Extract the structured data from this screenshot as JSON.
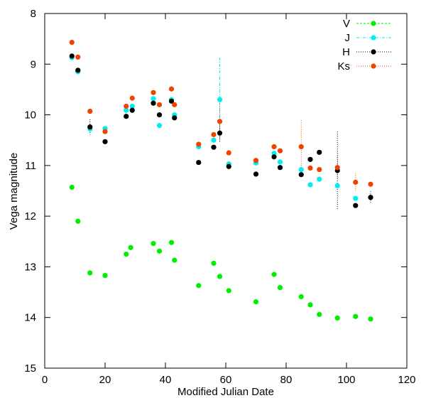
{
  "chart_data": {
    "type": "scatter",
    "title": "",
    "xlabel": "Modified Julian Date",
    "ylabel": "Vega magnitude",
    "xlim": [
      0,
      120
    ],
    "ylim": [
      8,
      15
    ],
    "y_inverted": true,
    "x_ticks": [
      0,
      20,
      40,
      60,
      80,
      100,
      120
    ],
    "y_ticks": [
      8,
      9,
      10,
      11,
      12,
      13,
      14,
      15
    ],
    "grid": false,
    "legend_position": "top-right",
    "series": [
      {
        "name": "V",
        "color": "#00ee00",
        "line_style": "dashed",
        "points": [
          {
            "x": 9,
            "y": 11.43
          },
          {
            "x": 11,
            "y": 12.1
          },
          {
            "x": 15,
            "y": 13.12
          },
          {
            "x": 20,
            "y": 13.17
          },
          {
            "x": 27,
            "y": 12.75
          },
          {
            "x": 28.5,
            "y": 12.62
          },
          {
            "x": 36,
            "y": 12.54
          },
          {
            "x": 38,
            "y": 12.69
          },
          {
            "x": 42,
            "y": 12.52
          },
          {
            "x": 43,
            "y": 12.87
          },
          {
            "x": 51,
            "y": 13.37
          },
          {
            "x": 56,
            "y": 12.93
          },
          {
            "x": 58,
            "y": 13.19
          },
          {
            "x": 61,
            "y": 13.47
          },
          {
            "x": 70,
            "y": 13.69
          },
          {
            "x": 76,
            "y": 13.15
          },
          {
            "x": 78,
            "y": 13.41
          },
          {
            "x": 85,
            "y": 13.59
          },
          {
            "x": 88,
            "y": 13.75
          },
          {
            "x": 91,
            "y": 13.94
          },
          {
            "x": 97,
            "y": 14.01
          },
          {
            "x": 103,
            "y": 13.98
          },
          {
            "x": 108,
            "y": 14.03
          }
        ]
      },
      {
        "name": "J",
        "color": "#00eeee",
        "line_style": "dash-dot",
        "points": [
          {
            "x": 9,
            "y": 8.87
          },
          {
            "x": 11,
            "y": 9.15
          },
          {
            "x": 15,
            "y": 10.28
          },
          {
            "x": 20,
            "y": 10.27
          },
          {
            "x": 27,
            "y": 9.91
          },
          {
            "x": 29,
            "y": 9.83
          },
          {
            "x": 36,
            "y": 9.68
          },
          {
            "x": 38,
            "y": 10.21
          },
          {
            "x": 42,
            "y": 9.7
          },
          {
            "x": 43,
            "y": 10.0
          },
          {
            "x": 51,
            "y": 10.63
          },
          {
            "x": 56,
            "y": 10.5
          },
          {
            "x": 58,
            "y": 9.7,
            "err": 0.83
          },
          {
            "x": 61,
            "y": 10.97
          },
          {
            "x": 70,
            "y": 10.95
          },
          {
            "x": 76,
            "y": 10.76
          },
          {
            "x": 78,
            "y": 10.93
          },
          {
            "x": 85,
            "y": 11.08
          },
          {
            "x": 88,
            "y": 11.38
          },
          {
            "x": 91,
            "y": 11.27
          },
          {
            "x": 97,
            "y": 11.4
          },
          {
            "x": 103,
            "y": 11.65
          },
          {
            "x": 108,
            "y": 11.63
          }
        ]
      },
      {
        "name": "H",
        "color": "#000000",
        "line_style": "dotted",
        "points": [
          {
            "x": 9,
            "y": 8.84
          },
          {
            "x": 11,
            "y": 9.12
          },
          {
            "x": 15,
            "y": 10.24,
            "err": 0.15
          },
          {
            "x": 20,
            "y": 10.53
          },
          {
            "x": 27,
            "y": 10.03
          },
          {
            "x": 29,
            "y": 9.91
          },
          {
            "x": 36,
            "y": 9.77
          },
          {
            "x": 38,
            "y": 10.0
          },
          {
            "x": 42,
            "y": 9.73
          },
          {
            "x": 43,
            "y": 10.06
          },
          {
            "x": 51,
            "y": 10.94
          },
          {
            "x": 56,
            "y": 10.64
          },
          {
            "x": 58,
            "y": 10.36,
            "err": 0.18
          },
          {
            "x": 61,
            "y": 11.02
          },
          {
            "x": 70,
            "y": 11.17
          },
          {
            "x": 76,
            "y": 10.83
          },
          {
            "x": 78,
            "y": 11.04
          },
          {
            "x": 85,
            "y": 11.18
          },
          {
            "x": 88,
            "y": 10.88
          },
          {
            "x": 91,
            "y": 10.74
          },
          {
            "x": 97,
            "y": 11.1,
            "err": 0.77
          },
          {
            "x": 103,
            "y": 11.79
          },
          {
            "x": 108,
            "y": 11.63,
            "err": 0.12
          }
        ]
      },
      {
        "name": "Ks",
        "color": "#ee4400",
        "line_style": "dotted",
        "points": [
          {
            "x": 9,
            "y": 8.57
          },
          {
            "x": 11,
            "y": 8.86
          },
          {
            "x": 15,
            "y": 9.93
          },
          {
            "x": 20,
            "y": 10.33
          },
          {
            "x": 27,
            "y": 9.83
          },
          {
            "x": 29,
            "y": 9.67
          },
          {
            "x": 36,
            "y": 9.56
          },
          {
            "x": 38,
            "y": 9.8
          },
          {
            "x": 42,
            "y": 9.49
          },
          {
            "x": 43,
            "y": 9.8
          },
          {
            "x": 51,
            "y": 10.58
          },
          {
            "x": 56,
            "y": 10.39
          },
          {
            "x": 58,
            "y": 10.13,
            "err": 0.35
          },
          {
            "x": 61,
            "y": 10.75
          },
          {
            "x": 70,
            "y": 10.9
          },
          {
            "x": 76,
            "y": 10.63
          },
          {
            "x": 78,
            "y": 10.71
          },
          {
            "x": 85,
            "y": 10.63,
            "err": 0.52
          },
          {
            "x": 88,
            "y": 11.05
          },
          {
            "x": 91,
            "y": 11.08
          },
          {
            "x": 97,
            "y": 11.04,
            "err": 0.23
          },
          {
            "x": 103,
            "y": 11.33,
            "err": 0.18
          },
          {
            "x": 108,
            "y": 11.37
          }
        ]
      }
    ]
  }
}
